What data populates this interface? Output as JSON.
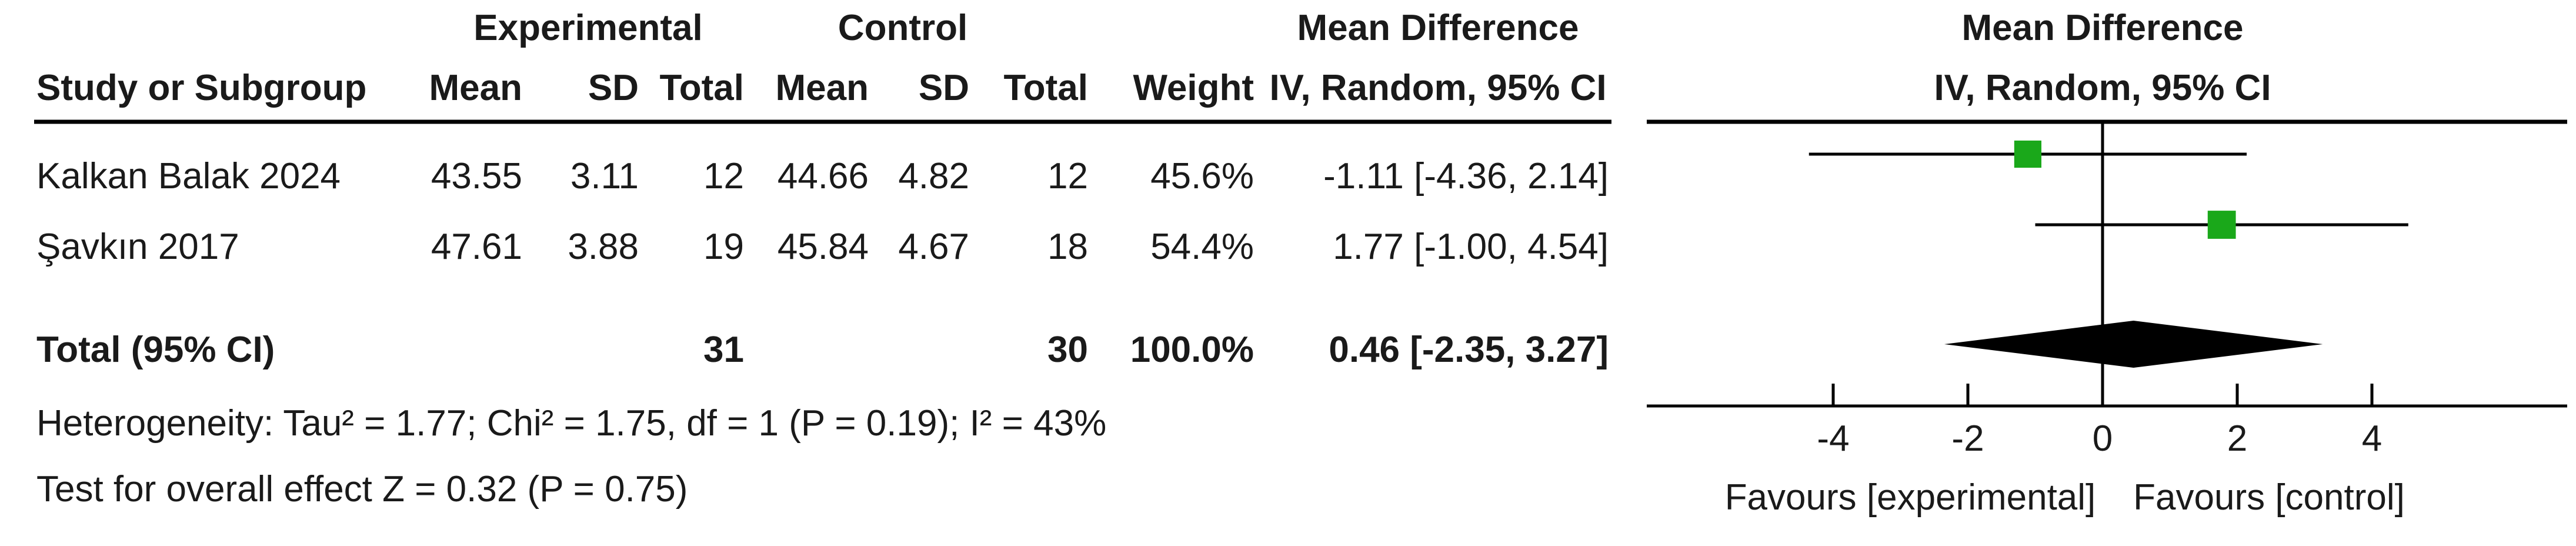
{
  "chart_data": {
    "type": "table",
    "header": {
      "group_experimental": "Experimental",
      "group_control": "Control",
      "md_title": "Mean Difference",
      "study_col": "Study or Subgroup",
      "mean": "Mean",
      "sd": "SD",
      "total": "Total",
      "weight": "Weight",
      "md_method": "IV, Random, 95% CI",
      "plot_title": "Mean Difference",
      "plot_method": "IV, Random, 95% CI"
    },
    "studies": [
      {
        "name": "Kalkan Balak 2024",
        "exp_mean": "43.55",
        "exp_sd": "3.11",
        "exp_total": "12",
        "ctl_mean": "44.66",
        "ctl_sd": "4.82",
        "ctl_total": "12",
        "weight": "45.6%",
        "ci_text": "-1.11 [-4.36, 2.14]",
        "md": -1.11,
        "lower": -4.36,
        "upper": 2.14,
        "weight_pct": 45.6
      },
      {
        "name": "Şavkın 2017",
        "exp_mean": "47.61",
        "exp_sd": "3.88",
        "exp_total": "19",
        "ctl_mean": "45.84",
        "ctl_sd": "4.67",
        "ctl_total": "18",
        "weight": "54.4%",
        "ci_text": "1.77 [-1.00, 4.54]",
        "md": 1.77,
        "lower": -1.0,
        "upper": 4.54,
        "weight_pct": 54.4
      }
    ],
    "total": {
      "label": "Total (95% CI)",
      "exp_total": "31",
      "ctl_total": "30",
      "weight": "100.0%",
      "ci_text": "0.46 [-2.35, 3.27]",
      "md": 0.46,
      "lower": -2.35,
      "upper": 3.27
    },
    "heterogeneity": "Heterogeneity: Tau² = 1.77; Chi² = 1.75, df = 1 (P = 0.19); I² = 43%",
    "overall_effect": "Test for overall effect  Z = 0.32 (P = 0.75)",
    "axis": {
      "xlim": [
        -5.0,
        5.0
      ],
      "ticks": [
        -4,
        -2,
        0,
        2,
        4
      ],
      "tick_labels": [
        "-4",
        "-2",
        "0",
        "2",
        "4"
      ],
      "favours_left": "Favours [experimental]",
      "favours_right": "Favours [control]"
    },
    "colors": {
      "study_marker": "#1aa81a",
      "diamond": "#000000",
      "line": "#000000"
    }
  }
}
